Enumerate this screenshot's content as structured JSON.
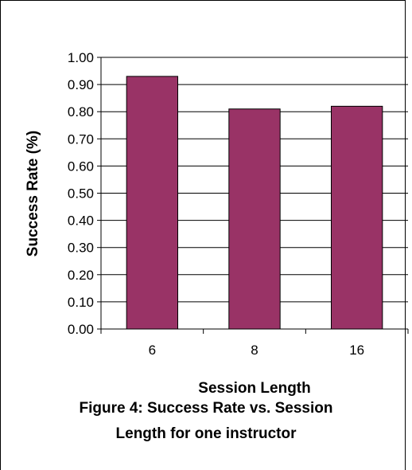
{
  "chart_data": {
    "type": "bar",
    "categories": [
      "6",
      "8",
      "16"
    ],
    "values": [
      0.93,
      0.81,
      0.82
    ],
    "title": "",
    "xlabel": "Session Length",
    "ylabel": "Success Rate (%)",
    "ylim": [
      0.0,
      1.0
    ],
    "yticks": [
      "0.00",
      "0.10",
      "0.20",
      "0.30",
      "0.40",
      "0.50",
      "0.60",
      "0.70",
      "0.80",
      "0.90",
      "1.00"
    ],
    "grid": true,
    "legend": "none",
    "bar_color": "#993366"
  },
  "caption": {
    "line1": "Figure 4:  Success Rate vs. Session",
    "line2": "Length for one instructor"
  }
}
